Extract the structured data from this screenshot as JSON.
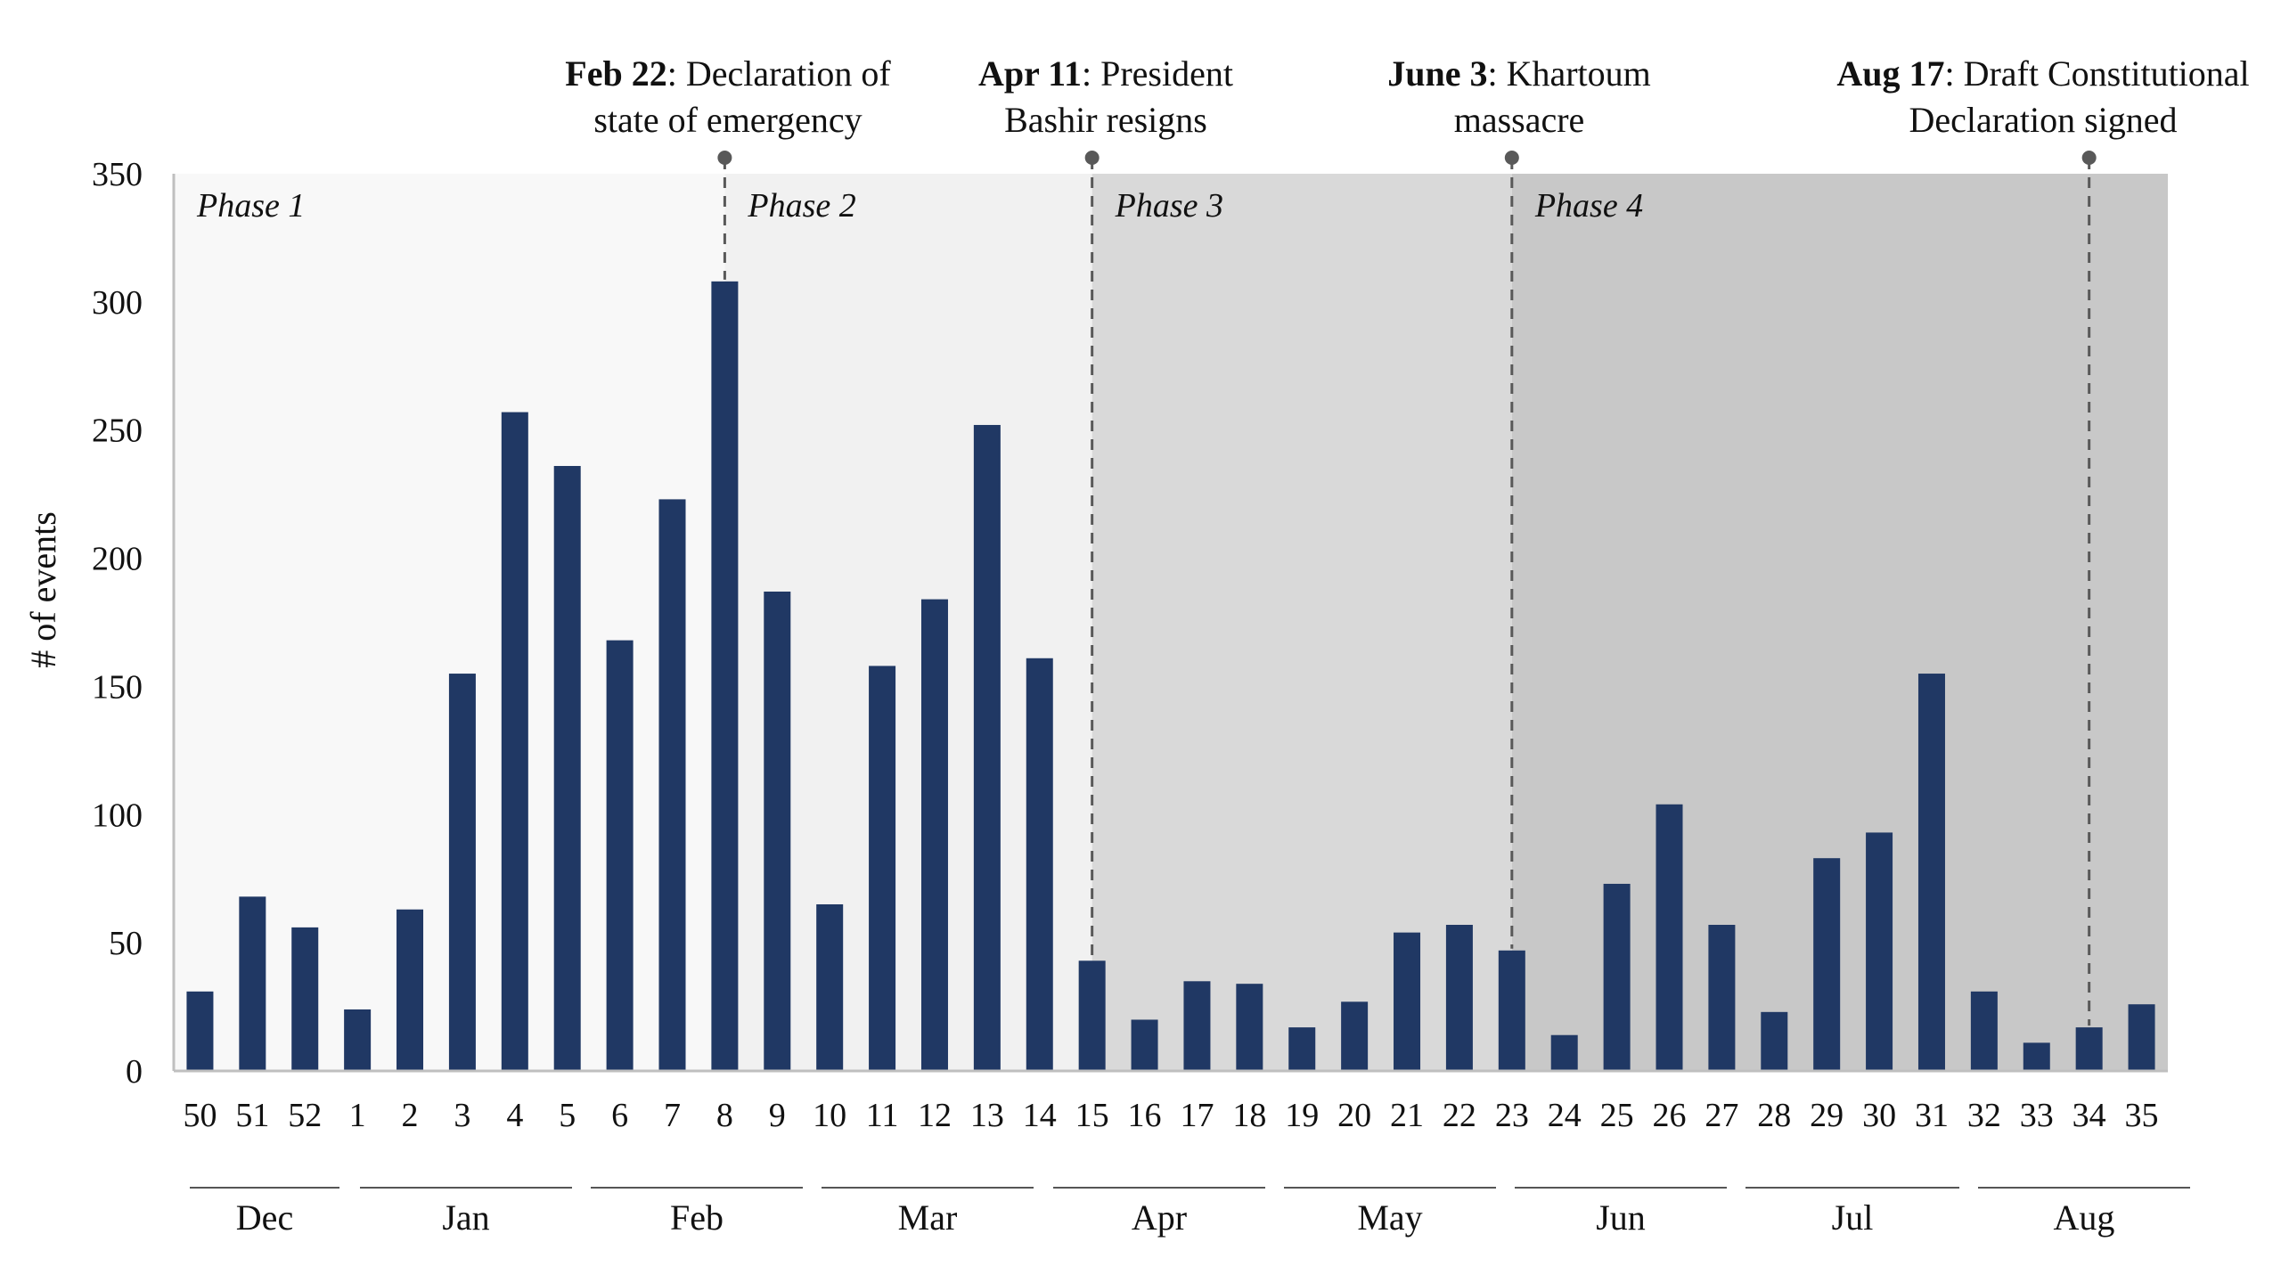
{
  "chart_data": {
    "type": "bar",
    "title": "",
    "xlabel": "",
    "ylabel": "# of events",
    "ylim": [
      0,
      350
    ],
    "yticks": [
      0,
      50,
      100,
      150,
      200,
      250,
      300,
      350
    ],
    "grid": false,
    "bar_color": "#203864",
    "categories": [
      "50",
      "51",
      "52",
      "1",
      "2",
      "3",
      "4",
      "5",
      "6",
      "7",
      "8",
      "9",
      "10",
      "11",
      "12",
      "13",
      "14",
      "15",
      "16",
      "17",
      "18",
      "19",
      "20",
      "21",
      "22",
      "23",
      "24",
      "25",
      "26",
      "27",
      "28",
      "29",
      "30",
      "31",
      "32",
      "33",
      "34",
      "35"
    ],
    "values": [
      31,
      68,
      56,
      24,
      63,
      155,
      257,
      236,
      168,
      223,
      308,
      187,
      65,
      158,
      184,
      252,
      161,
      43,
      20,
      35,
      34,
      17,
      27,
      54,
      57,
      47,
      14,
      73,
      104,
      57,
      23,
      83,
      93,
      155,
      31,
      11,
      17,
      26
    ],
    "months": [
      {
        "label": "Dec",
        "weeks": [
          "50",
          "51",
          "52"
        ]
      },
      {
        "label": "Jan",
        "weeks": [
          "1",
          "2",
          "3",
          "4",
          "5"
        ]
      },
      {
        "label": "Feb",
        "weeks": [
          "6",
          "7",
          "8",
          "9"
        ]
      },
      {
        "label": "Mar",
        "weeks": [
          "10",
          "11",
          "12",
          "13"
        ]
      },
      {
        "label": "Apr",
        "weeks": [
          "14",
          "15",
          "16",
          "17"
        ]
      },
      {
        "label": "May",
        "weeks": [
          "18",
          "19",
          "20",
          "21",
          "22"
        ]
      },
      {
        "label": "Jun",
        "weeks": [
          "23",
          "24",
          "25",
          "26"
        ]
      },
      {
        "label": "Jul",
        "weeks": [
          "27",
          "28",
          "29",
          "30",
          "31"
        ]
      },
      {
        "label": "Aug",
        "weeks": [
          "32",
          "33",
          "34",
          "35"
        ]
      }
    ],
    "phases": [
      {
        "label": "Phase 1",
        "start_week": "50",
        "end_week": "8",
        "color": "#f8f8f8"
      },
      {
        "label": "Phase 2",
        "start_week": "8",
        "end_week": "15",
        "color": "#f1f1f1"
      },
      {
        "label": "Phase 3",
        "start_week": "15",
        "end_week": "23",
        "color": "#d9d9d9"
      },
      {
        "label": "Phase 4",
        "start_week": "23",
        "end_week": "35",
        "color": "#c8c8c8"
      }
    ],
    "annotations": [
      {
        "week": "8",
        "bold": "Feb 22",
        "line1_rest": ": Declaration of",
        "line2": "state of emergency"
      },
      {
        "week": "15",
        "bold": "Apr 11",
        "line1_rest": ": President",
        "line2": "Bashir resigns"
      },
      {
        "week": "23",
        "bold": "June 3",
        "line1_rest": ": Khartoum",
        "line2": "massacre"
      },
      {
        "week": "34",
        "bold": "Aug 17",
        "line1_rest": ": Draft Constitutional",
        "line2": "Declaration signed"
      }
    ]
  }
}
